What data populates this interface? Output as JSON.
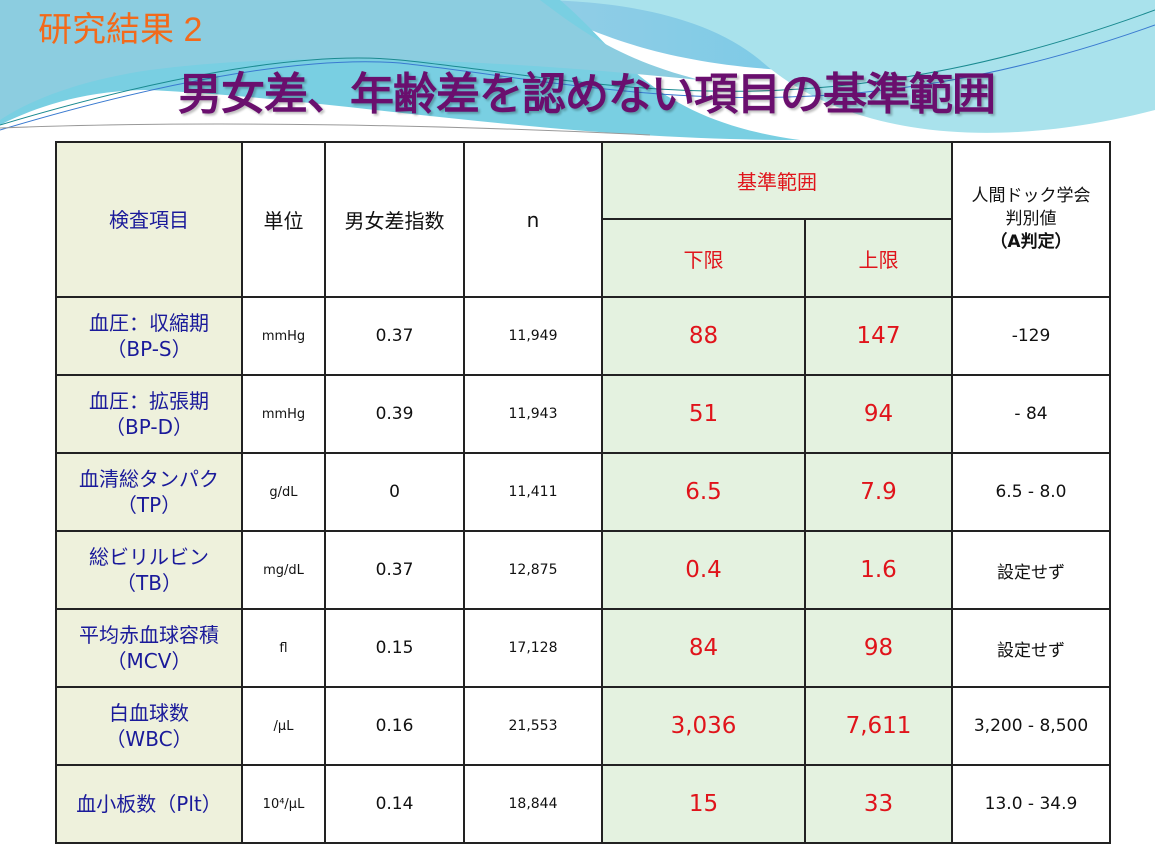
{
  "slide": {
    "subtitle": "研究結果 2",
    "title": "男女差、年齢差を認めない項目の基準範囲"
  },
  "table": {
    "headers": {
      "item": "検査項目",
      "unit": "単位",
      "sex_index": "男女差指数",
      "n": "n",
      "range": "基準範囲",
      "lower": "下限",
      "upper": "上限",
      "judge_line1": "人間ドック学会",
      "judge_line2": "判別値",
      "judge_line3": "（A判定）"
    },
    "rows": [
      {
        "name1": "血圧：収縮期",
        "name2": "（BP-S）",
        "unit": "mmHg",
        "sex_index": "0.37",
        "n": "11,949",
        "lower": "88",
        "upper": "147",
        "judge": "-129"
      },
      {
        "name1": "血圧：拡張期",
        "name2": "（BP-D）",
        "unit": "mmHg",
        "sex_index": "0.39",
        "n": "11,943",
        "lower": "51",
        "upper": "94",
        "judge": "- 84"
      },
      {
        "name1": "血清総タンパク",
        "name2": "（TP）",
        "unit": "g/dL",
        "sex_index": "0",
        "n": "11,411",
        "lower": "6.5",
        "upper": "7.9",
        "judge": "6.5 - 8.0"
      },
      {
        "name1": "総ビリルビン",
        "name2": "（TB）",
        "unit": "mg/dL",
        "sex_index": "0.37",
        "n": "12,875",
        "lower": "0.4",
        "upper": "1.6",
        "judge": "設定せず"
      },
      {
        "name1": "平均赤血球容積",
        "name2": "（MCV）",
        "unit": "fl",
        "sex_index": "0.15",
        "n": "17,128",
        "lower": "84",
        "upper": "98",
        "judge": "設定せず"
      },
      {
        "name1": "白血球数",
        "name2": "（WBC）",
        "unit": "/μL",
        "sex_index": "0.16",
        "n": "21,553",
        "lower": "3,036",
        "upper": "7,611",
        "judge": "3,200 - 8,500"
      },
      {
        "name1": "血小板数（Plt）",
        "name2": "",
        "unit": "10⁴/μL",
        "sex_index": "0.14",
        "n": "18,844",
        "lower": "15",
        "upper": "33",
        "judge": "13.0 - 34.9"
      }
    ]
  },
  "colors": {
    "subtitle": "#f26a1b",
    "title": "#6a0f6e",
    "item_text": "#1a1a9a",
    "range_text": "#e0141b",
    "range_bg": "#e4f2e0",
    "item_bg": "#eef1dc"
  }
}
